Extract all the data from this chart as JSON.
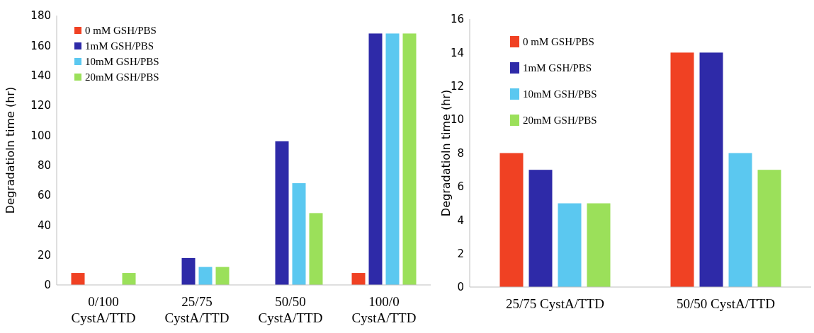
{
  "chart_data": [
    {
      "type": "bar",
      "ylabel": "Degradatioln time (hr)",
      "categories": [
        "0/100 CystA/TTD",
        "25/75 CystA/TTD",
        "50/50 CystA/TTD",
        "100/0 CystA/TTD"
      ],
      "series": [
        {
          "name": "0 mM GSH/PBS",
          "color": "#f04123",
          "values": [
            8,
            0,
            0,
            8
          ]
        },
        {
          "name": "1mM GSH/PBS",
          "color": "#2e2aa8",
          "values": [
            0,
            18,
            96,
            168
          ]
        },
        {
          "name": "10mM GSH/PBS",
          "color": "#5bc8f0",
          "values": [
            0,
            12,
            68,
            168
          ]
        },
        {
          "name": "20mM GSH/PBS",
          "color": "#9be05a",
          "values": [
            8,
            12,
            48,
            168
          ]
        }
      ],
      "ylim": [
        0,
        180
      ],
      "yticks": [
        0,
        20,
        40,
        60,
        80,
        100,
        120,
        140,
        160,
        180
      ],
      "grid": false,
      "legend": "top left"
    },
    {
      "type": "bar",
      "ylabel": "Degradatioln time (hr)",
      "categories": [
        "25/75 CystA/TTD",
        "50/50 CystA/TTD"
      ],
      "series": [
        {
          "name": "0 mM GSH/PBS",
          "color": "#f04123",
          "values": [
            8,
            14
          ]
        },
        {
          "name": "1mM GSH/PBS",
          "color": "#2e2aa8",
          "values": [
            7,
            14
          ]
        },
        {
          "name": "10mM GSH/PBS",
          "color": "#5bc8f0",
          "values": [
            5,
            8
          ]
        },
        {
          "name": "20mM GSH/PBS",
          "color": "#9be05a",
          "values": [
            5,
            7
          ]
        }
      ],
      "ylim": [
        0,
        16
      ],
      "yticks": [
        0,
        2,
        4,
        6,
        8,
        10,
        12,
        14,
        16
      ],
      "grid": false,
      "legend": "top left"
    }
  ]
}
